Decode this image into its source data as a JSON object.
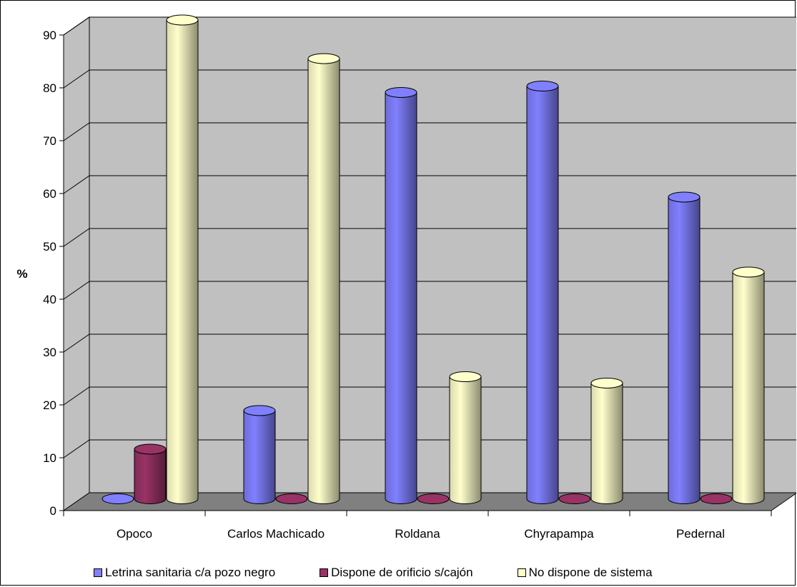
{
  "chart_data": {
    "type": "bar",
    "title": "",
    "xlabel": "",
    "ylabel": "%",
    "ylim": [
      0,
      90
    ],
    "yticks": [
      "0",
      "10",
      "20",
      "30",
      "40",
      "50",
      "60",
      "70",
      "80",
      "90"
    ],
    "grid": true,
    "legend_position": "bottom",
    "categories": [
      "Opoco",
      "Carlos Machicado",
      "Roldana",
      "Chyrapampa",
      "Pedernal"
    ],
    "series": [
      {
        "name": "Letrina sanitaria c/a pozo negro",
        "color": "#8080ff",
        "values": [
          0,
          16.7,
          76.9,
          78.1,
          57.1
        ]
      },
      {
        "name": "Dispone de orificio s/cajón",
        "color": "#993366",
        "values": [
          9.4,
          0,
          0,
          0,
          0
        ]
      },
      {
        "name": "No dispone de sistema",
        "color": "#ffffcc",
        "values": [
          90.6,
          83.3,
          23.1,
          21.9,
          42.9
        ]
      }
    ],
    "colors": {
      "wall": "#c0c0c0",
      "floor": "#808080",
      "gridline": "#000000"
    }
  }
}
